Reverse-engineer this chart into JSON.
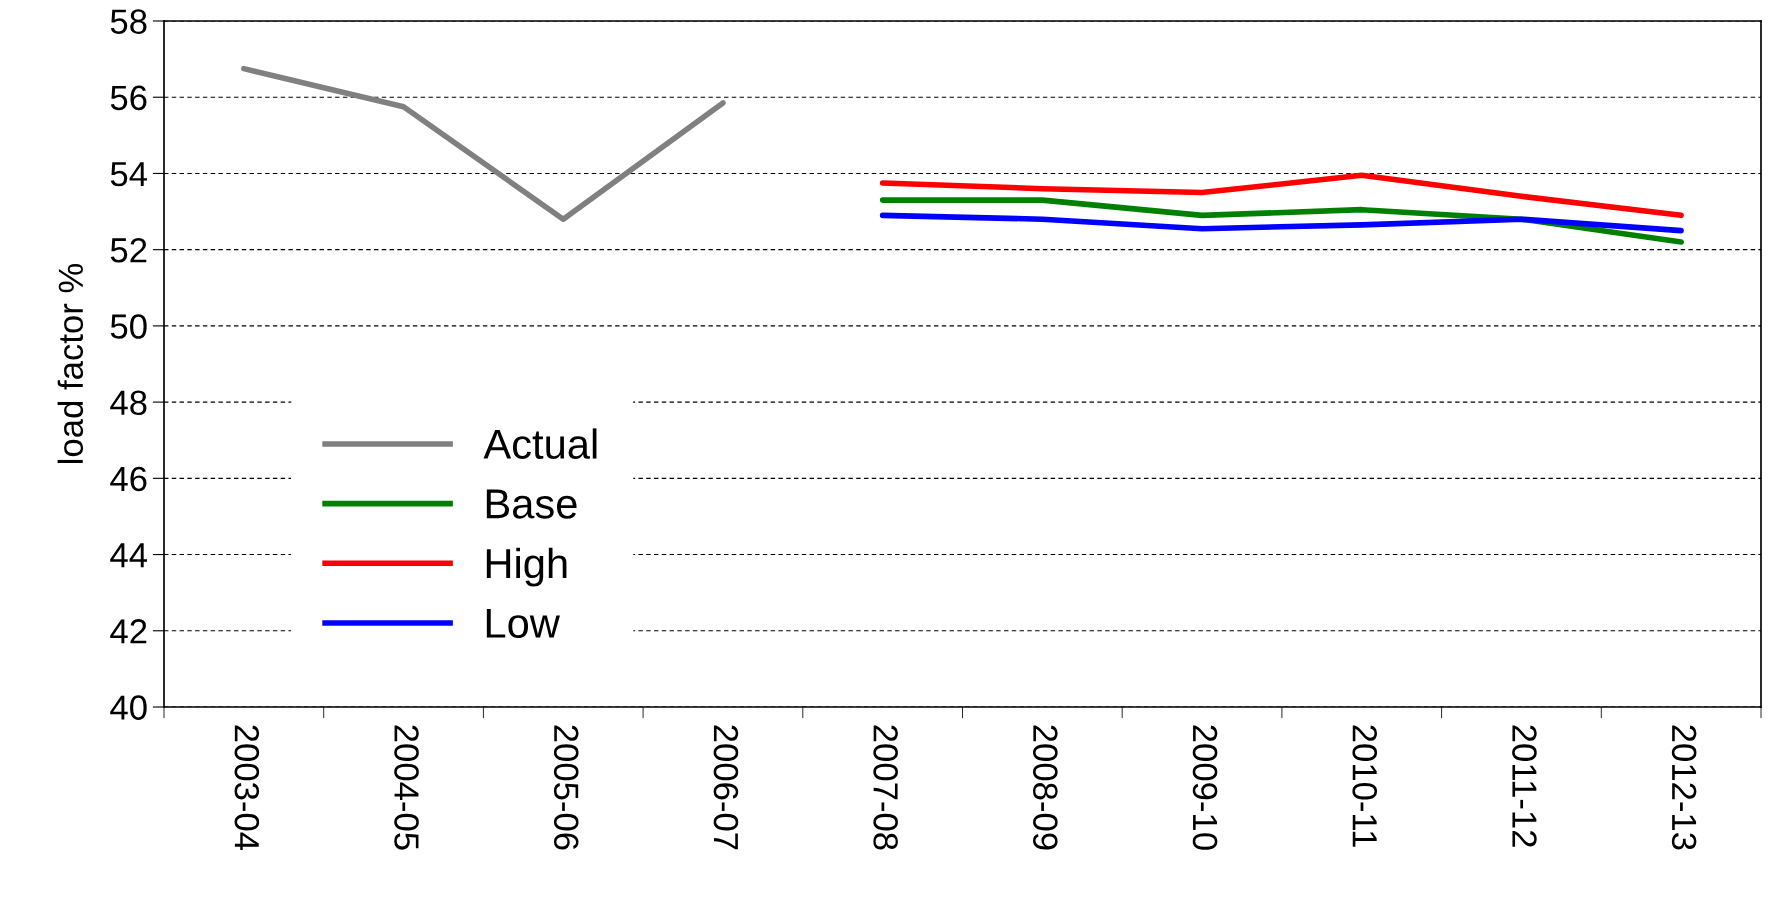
{
  "chart_data": {
    "type": "line",
    "ylabel": "load factor %",
    "categories": [
      "2003-04",
      "2004-05",
      "2005-06",
      "2006-07",
      "2007-08",
      "2008-09",
      "2009-10",
      "2010-11",
      "2011-12",
      "2012-13"
    ],
    "series": [
      {
        "name": "Actual",
        "color": "#808080",
        "values": [
          56.75,
          55.75,
          52.8,
          55.85,
          null,
          null,
          null,
          null,
          null,
          null
        ]
      },
      {
        "name": "Base",
        "color": "#008000",
        "values": [
          null,
          null,
          null,
          null,
          53.3,
          53.3,
          52.9,
          53.05,
          52.8,
          52.2
        ]
      },
      {
        "name": "High",
        "color": "#ff0000",
        "values": [
          null,
          null,
          null,
          null,
          53.75,
          53.6,
          53.5,
          53.95,
          53.4,
          52.9
        ]
      },
      {
        "name": "Low",
        "color": "#0000ff",
        "values": [
          null,
          null,
          null,
          null,
          52.9,
          52.8,
          52.55,
          52.65,
          52.8,
          52.5
        ]
      }
    ],
    "ylim": [
      40,
      58
    ],
    "yticks": [
      40,
      42,
      44,
      46,
      48,
      50,
      52,
      54,
      56,
      58
    ],
    "grid": "y",
    "legend": "bottom left",
    "marker": "none",
    "line_style": "solid"
  }
}
